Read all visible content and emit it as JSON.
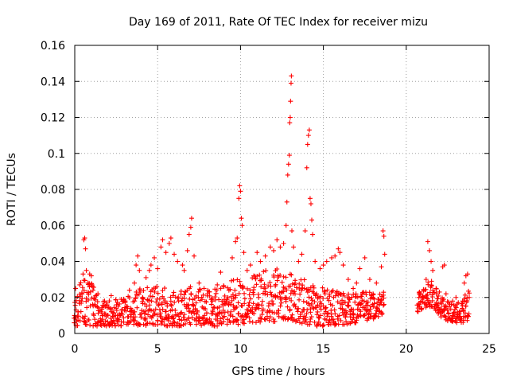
{
  "chart_data": {
    "type": "scatter",
    "title": "Day 169 of 2011, Rate Of TEC Index for receiver mizu",
    "xlabel": "GPS time / hours",
    "ylabel": "ROTI / TECUs",
    "xlim": [
      0,
      25
    ],
    "ylim": [
      0,
      0.16
    ],
    "x_ticks": [
      0,
      5,
      10,
      15,
      20,
      25
    ],
    "x_tick_labels": [
      "0",
      "5",
      "10",
      "15",
      "20",
      "25"
    ],
    "y_ticks": [
      0,
      0.02,
      0.04,
      0.06,
      0.08,
      0.1,
      0.12,
      0.14,
      0.16
    ],
    "y_tick_labels": [
      "0",
      "0.02",
      "0.04",
      "0.06",
      "0.08",
      "0.1",
      "0.12",
      "0.14",
      "0.16"
    ],
    "grid": true,
    "marker": "+",
    "marker_color": "#ff0000",
    "series": [
      {
        "name": "ROTI",
        "points": [
          [
            0.05,
            0.025
          ],
          [
            0.2,
            0.012
          ],
          [
            0.3,
            0.027
          ],
          [
            0.4,
            0.018
          ],
          [
            0.5,
            0.033
          ],
          [
            0.55,
            0.052
          ],
          [
            0.6,
            0.053
          ],
          [
            0.65,
            0.047
          ],
          [
            0.7,
            0.035
          ],
          [
            0.8,
            0.028
          ],
          [
            0.9,
            0.033
          ],
          [
            1.0,
            0.032
          ],
          [
            1.1,
            0.024
          ],
          [
            1.2,
            0.016
          ],
          [
            1.4,
            0.022
          ],
          [
            1.6,
            0.012
          ],
          [
            1.8,
            0.018
          ],
          [
            2.0,
            0.01
          ],
          [
            2.2,
            0.021
          ],
          [
            2.5,
            0.014
          ],
          [
            2.8,
            0.019
          ],
          [
            3.0,
            0.013
          ],
          [
            3.3,
            0.024
          ],
          [
            3.6,
            0.028
          ],
          [
            3.7,
            0.038
          ],
          [
            3.8,
            0.043
          ],
          [
            3.9,
            0.035
          ],
          [
            4.1,
            0.02
          ],
          [
            4.3,
            0.031
          ],
          [
            4.5,
            0.035
          ],
          [
            4.6,
            0.038
          ],
          [
            4.8,
            0.042
          ],
          [
            5.0,
            0.036
          ],
          [
            5.2,
            0.048
          ],
          [
            5.3,
            0.052
          ],
          [
            5.5,
            0.045
          ],
          [
            5.7,
            0.05
          ],
          [
            5.8,
            0.053
          ],
          [
            6.0,
            0.044
          ],
          [
            6.2,
            0.04
          ],
          [
            6.5,
            0.038
          ],
          [
            6.6,
            0.035
          ],
          [
            6.8,
            0.046
          ],
          [
            6.9,
            0.055
          ],
          [
            7.0,
            0.059
          ],
          [
            7.05,
            0.064
          ],
          [
            7.2,
            0.043
          ],
          [
            7.5,
            0.028
          ],
          [
            7.8,
            0.025
          ],
          [
            8.0,
            0.022
          ],
          [
            8.3,
            0.018
          ],
          [
            8.6,
            0.027
          ],
          [
            8.8,
            0.034
          ],
          [
            9.0,
            0.026
          ],
          [
            9.3,
            0.024
          ],
          [
            9.5,
            0.042
          ],
          [
            9.7,
            0.051
          ],
          [
            9.8,
            0.053
          ],
          [
            9.9,
            0.075
          ],
          [
            9.95,
            0.082
          ],
          [
            10.0,
            0.079
          ],
          [
            10.05,
            0.064
          ],
          [
            10.1,
            0.06
          ],
          [
            10.2,
            0.045
          ],
          [
            10.4,
            0.035
          ],
          [
            10.6,
            0.038
          ],
          [
            10.8,
            0.032
          ],
          [
            11.0,
            0.045
          ],
          [
            11.2,
            0.04
          ],
          [
            11.5,
            0.043
          ],
          [
            11.8,
            0.048
          ],
          [
            12.0,
            0.046
          ],
          [
            12.2,
            0.052
          ],
          [
            12.4,
            0.048
          ],
          [
            12.6,
            0.05
          ],
          [
            12.75,
            0.06
          ],
          [
            12.8,
            0.073
          ],
          [
            12.85,
            0.088
          ],
          [
            12.9,
            0.094
          ],
          [
            12.95,
            0.099
          ],
          [
            12.97,
            0.117
          ],
          [
            13.0,
            0.12
          ],
          [
            13.02,
            0.129
          ],
          [
            13.05,
            0.139
          ],
          [
            13.07,
            0.143
          ],
          [
            13.1,
            0.057
          ],
          [
            13.2,
            0.048
          ],
          [
            13.5,
            0.04
          ],
          [
            13.7,
            0.044
          ],
          [
            13.9,
            0.057
          ],
          [
            14.0,
            0.092
          ],
          [
            14.05,
            0.105
          ],
          [
            14.1,
            0.11
          ],
          [
            14.15,
            0.113
          ],
          [
            14.2,
            0.075
          ],
          [
            14.25,
            0.072
          ],
          [
            14.3,
            0.063
          ],
          [
            14.35,
            0.055
          ],
          [
            14.5,
            0.04
          ],
          [
            14.8,
            0.036
          ],
          [
            15.0,
            0.038
          ],
          [
            15.2,
            0.04
          ],
          [
            15.5,
            0.042
          ],
          [
            15.7,
            0.043
          ],
          [
            15.9,
            0.047
          ],
          [
            16.0,
            0.045
          ],
          [
            16.2,
            0.038
          ],
          [
            16.5,
            0.03
          ],
          [
            16.8,
            0.025
          ],
          [
            17.0,
            0.028
          ],
          [
            17.2,
            0.036
          ],
          [
            17.5,
            0.042
          ],
          [
            17.8,
            0.03
          ],
          [
            18.0,
            0.022
          ],
          [
            18.2,
            0.028
          ],
          [
            18.5,
            0.037
          ],
          [
            18.6,
            0.057
          ],
          [
            18.65,
            0.054
          ],
          [
            18.7,
            0.044
          ],
          [
            20.8,
            0.023
          ],
          [
            21.0,
            0.02
          ],
          [
            21.2,
            0.03
          ],
          [
            21.3,
            0.051
          ],
          [
            21.4,
            0.046
          ],
          [
            21.5,
            0.04
          ],
          [
            21.6,
            0.035
          ],
          [
            21.8,
            0.025
          ],
          [
            22.0,
            0.023
          ],
          [
            22.2,
            0.037
          ],
          [
            22.3,
            0.038
          ],
          [
            22.4,
            0.022
          ],
          [
            22.6,
            0.015
          ],
          [
            22.8,
            0.018
          ],
          [
            23.0,
            0.02
          ],
          [
            23.2,
            0.012
          ],
          [
            23.4,
            0.018
          ],
          [
            23.5,
            0.028
          ],
          [
            23.6,
            0.032
          ],
          [
            23.7,
            0.033
          ],
          [
            23.8,
            0.02
          ]
        ],
        "band": {
          "x": [
            0,
            0.5,
            1,
            1.5,
            2,
            2.5,
            3,
            3.5,
            4,
            4.5,
            5,
            5.5,
            6,
            6.5,
            7,
            7.5,
            8,
            8.5,
            9,
            9.5,
            10,
            10.5,
            11,
            11.5,
            12,
            12.5,
            13,
            13.5,
            14,
            14.5,
            15,
            15.5,
            16,
            16.5,
            17,
            17.5,
            18,
            18.5,
            18.7
          ],
          "low": [
            0.004,
            0.005,
            0.004,
            0.004,
            0.004,
            0.004,
            0.004,
            0.005,
            0.004,
            0.004,
            0.005,
            0.004,
            0.004,
            0.004,
            0.004,
            0.004,
            0.004,
            0.004,
            0.004,
            0.005,
            0.005,
            0.005,
            0.006,
            0.006,
            0.006,
            0.007,
            0.007,
            0.006,
            0.005,
            0.004,
            0.004,
            0.004,
            0.005,
            0.005,
            0.006,
            0.007,
            0.008,
            0.01,
            0.012
          ],
          "high": [
            0.025,
            0.03,
            0.028,
            0.022,
            0.02,
            0.02,
            0.021,
            0.022,
            0.025,
            0.027,
            0.026,
            0.026,
            0.025,
            0.025,
            0.026,
            0.025,
            0.024,
            0.025,
            0.027,
            0.03,
            0.03,
            0.031,
            0.033,
            0.035,
            0.036,
            0.036,
            0.034,
            0.032,
            0.03,
            0.027,
            0.026,
            0.025,
            0.025,
            0.022,
            0.022,
            0.023,
            0.024,
            0.022,
            0.024
          ]
        },
        "band2": {
          "x": [
            20.7,
            21,
            21.5,
            22,
            22.5,
            23,
            23.5,
            23.8
          ],
          "low": [
            0.012,
            0.014,
            0.015,
            0.01,
            0.007,
            0.006,
            0.006,
            0.008
          ],
          "high": [
            0.022,
            0.025,
            0.03,
            0.021,
            0.018,
            0.017,
            0.02,
            0.028
          ]
        }
      }
    ]
  }
}
